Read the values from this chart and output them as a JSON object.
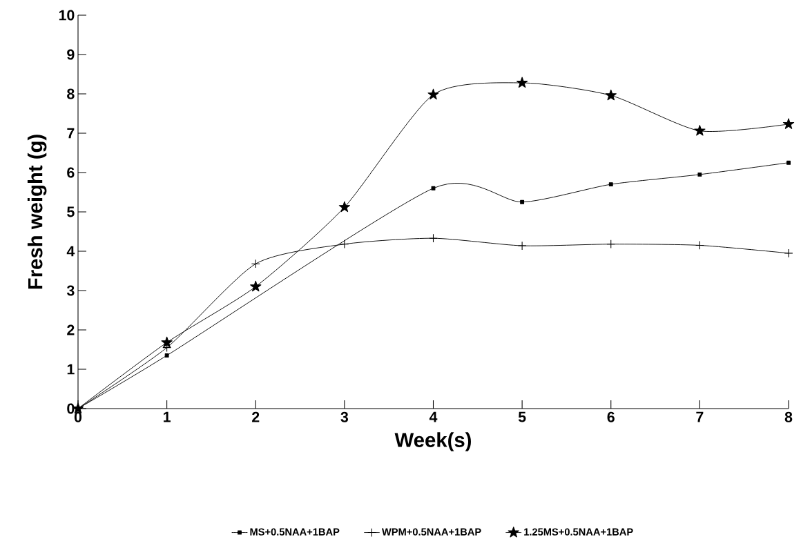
{
  "chart_data": {
    "type": "line",
    "xlabel": "Week(s)",
    "ylabel": "Fresh weight (g)",
    "x": [
      0,
      1,
      2,
      3,
      4,
      5,
      6,
      7,
      8
    ],
    "xlim": [
      0,
      8
    ],
    "xticks": [
      0,
      1,
      2,
      3,
      4,
      5,
      6,
      7,
      8
    ],
    "ylim": [
      0,
      10
    ],
    "yticks": [
      0,
      1,
      2,
      3,
      4,
      5,
      6,
      7,
      8,
      9,
      10
    ],
    "legend": "bottom",
    "line_style": "solid",
    "series": [
      {
        "name": "MS+0.5NAA+1BAP",
        "color": "#000000",
        "marker": "square",
        "values": [
          0,
          1.35,
          null,
          null,
          5.6,
          5.25,
          5.7,
          5.95,
          6.25
        ]
      },
      {
        "name": "WPM+0.5NAA+1BAP",
        "color": "#000000",
        "marker": "cross",
        "values": [
          0,
          1.55,
          3.68,
          4.18,
          4.33,
          4.14,
          4.18,
          4.15,
          3.95
        ]
      },
      {
        "name": "1.25MS+0.5NAA+1BAP",
        "color": "#000000",
        "marker": "star",
        "values": [
          0,
          1.68,
          3.1,
          5.12,
          7.98,
          8.28,
          7.96,
          7.06,
          7.23
        ]
      }
    ]
  }
}
